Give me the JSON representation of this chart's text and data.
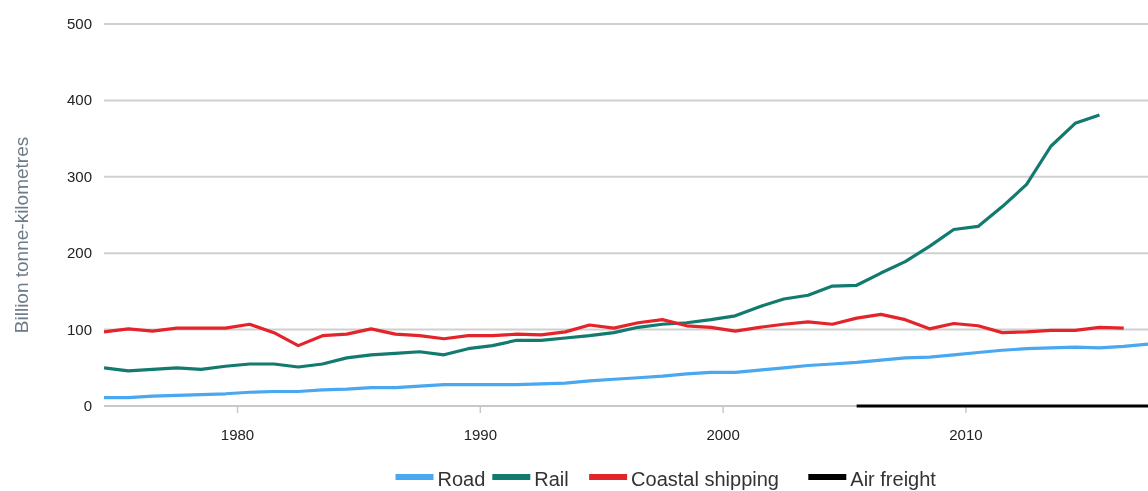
{
  "chart_data": {
    "type": "line",
    "ylabel": "Billion tonne-kilometres",
    "xlim": [
      1974.5,
      2017.5
    ],
    "xticks": [
      1980,
      1990,
      2000,
      2010
    ],
    "ylim": [
      0,
      500
    ],
    "yticks": [
      0,
      100,
      200,
      300,
      400,
      500
    ],
    "grid": "y",
    "legend": "bottom",
    "marker": "none",
    "line_style": "solid",
    "series": [
      {
        "name": "Road",
        "color": "#4aa8f0",
        "x": [
          1974.5,
          1975.5,
          1976.5,
          1977.5,
          1978.5,
          1979.5,
          1980.5,
          1981.5,
          1982.5,
          1983.5,
          1984.5,
          1985.5,
          1986.5,
          1987.5,
          1988.5,
          1989.5,
          1990.5,
          1991.5,
          1992.5,
          1993.5,
          1994.5,
          1995.5,
          1996.5,
          1997.5,
          1998.5,
          1999.5,
          2000.5,
          2001.5,
          2002.5,
          2003.5,
          2004.5,
          2005.5,
          2006.5,
          2007.5,
          2008.5,
          2009.5,
          2010.5,
          2011.5,
          2012.5,
          2013.5,
          2014.5,
          2015.5,
          2016.5,
          2017.5
        ],
        "values": [
          11,
          11,
          13,
          14,
          15,
          16,
          18,
          19,
          19,
          21,
          22,
          24,
          24,
          26,
          28,
          28,
          28,
          28,
          29,
          30,
          33,
          35,
          37,
          39,
          42,
          44,
          44,
          47,
          50,
          53,
          55,
          57,
          60,
          63,
          64,
          67,
          70,
          73,
          75,
          76,
          77,
          76,
          78,
          81
        ]
      },
      {
        "name": "Rail",
        "color": "#127a6e",
        "x": [
          1974.5,
          1975.5,
          1976.5,
          1977.5,
          1978.5,
          1979.5,
          1980.5,
          1981.5,
          1982.5,
          1983.5,
          1984.5,
          1985.5,
          1986.5,
          1987.5,
          1988.5,
          1989.5,
          1990.5,
          1991.5,
          1992.5,
          1993.5,
          1994.5,
          1995.5,
          1996.5,
          1997.5,
          1998.5,
          1999.5,
          2000.5,
          2001.5,
          2002.5,
          2003.5,
          2004.5,
          2005.5,
          2006.5,
          2007.5,
          2008.5,
          2009.5,
          2010.5,
          2011.5,
          2012.5,
          2013.5,
          2014.5,
          2015.5
        ],
        "values": [
          50,
          46,
          48,
          50,
          48,
          52,
          55,
          55,
          51,
          55,
          63,
          67,
          69,
          71,
          67,
          75,
          79,
          86,
          86,
          89,
          92,
          96,
          103,
          107,
          109,
          113,
          118,
          130,
          140,
          145,
          157,
          158,
          174,
          189,
          209,
          231,
          235,
          261,
          290,
          340,
          370,
          381
        ]
      },
      {
        "name": "Coastal shipping",
        "color": "#e3242b",
        "x": [
          1974.5,
          1975.5,
          1976.5,
          1977.5,
          1978.5,
          1979.5,
          1980.5,
          1981.5,
          1982.5,
          1983.5,
          1984.5,
          1985.5,
          1986.5,
          1987.5,
          1988.5,
          1989.5,
          1990.5,
          1991.5,
          1992.5,
          1993.5,
          1994.5,
          1995.5,
          1996.5,
          1997.5,
          1998.5,
          1999.5,
          2000.5,
          2001.5,
          2002.5,
          2003.5,
          2004.5,
          2005.5,
          2006.5,
          2007.5,
          2008.5,
          2009.5,
          2010.5,
          2011.5,
          2012.5,
          2013.5,
          2014.5,
          2015.5,
          2016.5
        ],
        "values": [
          97,
          101,
          98,
          102,
          102,
          102,
          107,
          96,
          79,
          92,
          94,
          101,
          94,
          92,
          88,
          92,
          92,
          94,
          93,
          97,
          106,
          102,
          109,
          113,
          105,
          103,
          98,
          103,
          107,
          110,
          107,
          115,
          120,
          113,
          101,
          108,
          105,
          96,
          97,
          99,
          99,
          103,
          102
        ]
      },
      {
        "name": "Air freight",
        "color": "#000000",
        "x": [
          2005.5,
          2017.5
        ],
        "values": [
          0,
          0
        ]
      }
    ]
  }
}
